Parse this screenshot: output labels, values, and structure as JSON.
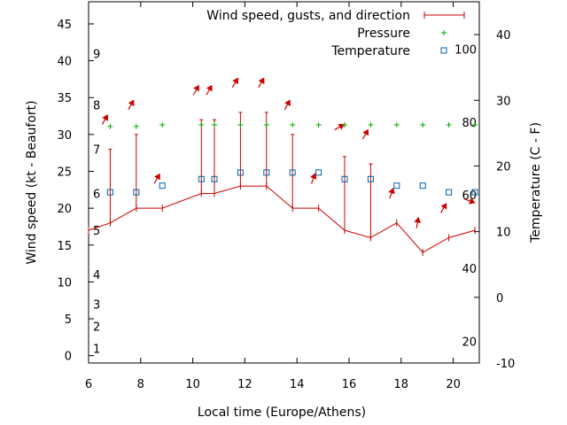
{
  "chart_data": {
    "type": "line",
    "title": "",
    "xlabel": "Local time (Europe/Athens)",
    "ylabel_left": "Wind speed (kt - Beaufort)",
    "ylabel_right": "Temperature (C - F)",
    "xlim": [
      6,
      21
    ],
    "ylim_left": [
      -1,
      48
    ],
    "ylim_right": [
      -10,
      45
    ],
    "x_ticks": [
      6,
      8,
      10,
      12,
      14,
      16,
      18,
      20
    ],
    "y_ticks_left": [
      0,
      5,
      10,
      15,
      20,
      25,
      30,
      35,
      40,
      45
    ],
    "y_ticks_right": [
      -10,
      0,
      10,
      20,
      30,
      40
    ],
    "beaufort_labels": [
      {
        "label": "1",
        "kt": 1
      },
      {
        "label": "2",
        "kt": 4
      },
      {
        "label": "3",
        "kt": 7
      },
      {
        "label": "4",
        "kt": 11
      },
      {
        "label": "5",
        "kt": 17
      },
      {
        "label": "6",
        "kt": 22
      },
      {
        "label": "7",
        "kt": 28
      },
      {
        "label": "8",
        "kt": 34
      },
      {
        "label": "9",
        "kt": 41
      }
    ],
    "fahrenheit_labels": [
      {
        "label": "20",
        "c": -6.7
      },
      {
        "label": "40",
        "c": 4.4
      },
      {
        "label": "60",
        "c": 15.6
      },
      {
        "label": "80",
        "c": 26.7
      },
      {
        "label": "100",
        "c": 37.8
      }
    ],
    "legend": [
      "Wind speed, gusts, and direction",
      "Pressure",
      "Temperature"
    ],
    "legend_position": "top-right",
    "grid": false,
    "colors": {
      "wind": "#cc0000",
      "pressure": "#00aa00",
      "temperature": "#0060ad",
      "axis": "#000000"
    },
    "series": [
      {
        "name": "Wind speed, gusts, and direction",
        "axis": "left",
        "x": [
          6.0,
          6.83,
          7.83,
          8.83,
          10.33,
          10.83,
          11.83,
          12.83,
          13.83,
          14.83,
          15.83,
          16.83,
          17.83,
          18.83,
          19.83,
          20.83
        ],
        "speed": [
          17,
          18,
          20,
          20,
          22,
          22,
          23,
          23,
          20,
          20,
          17,
          16,
          18,
          14,
          16,
          17
        ],
        "gust": [
          null,
          28,
          30,
          null,
          32,
          32,
          33,
          33,
          30,
          null,
          27,
          26,
          null,
          null,
          null,
          null
        ],
        "arrow_x": [
          6.83,
          7.83,
          8.83,
          10.33,
          10.83,
          11.83,
          12.83,
          13.83,
          14.83,
          15.83,
          16.83,
          17.83,
          18.83,
          19.83,
          20.83
        ],
        "arrow_kt": [
          32,
          34,
          24,
          36,
          36,
          37,
          37,
          34,
          24,
          31,
          30,
          22,
          18,
          20,
          21
        ],
        "arrow_dir": [
          210,
          210,
          210,
          210,
          210,
          210,
          210,
          210,
          200,
          240,
          210,
          200,
          190,
          210,
          290
        ]
      },
      {
        "name": "Pressure",
        "axis": "left",
        "x": [
          6.83,
          7.83,
          8.83,
          10.33,
          10.83,
          11.83,
          12.83,
          13.83,
          14.83,
          15.83,
          16.83,
          17.83,
          18.83,
          19.83,
          20.83
        ],
        "y": [
          31.1,
          31.1,
          31.3,
          31.3,
          31.3,
          31.3,
          31.3,
          31.3,
          31.3,
          31.3,
          31.3,
          31.3,
          31.3,
          31.3,
          31.3
        ]
      },
      {
        "name": "Temperature",
        "axis": "right",
        "x": [
          6.83,
          7.83,
          8.83,
          10.33,
          10.83,
          11.83,
          12.83,
          13.83,
          14.83,
          15.83,
          16.83,
          17.83,
          18.83,
          19.83,
          20.83
        ],
        "y": [
          16,
          16,
          17,
          18,
          18,
          19,
          19,
          19,
          19,
          18,
          18,
          17,
          17,
          16,
          16
        ]
      }
    ]
  }
}
